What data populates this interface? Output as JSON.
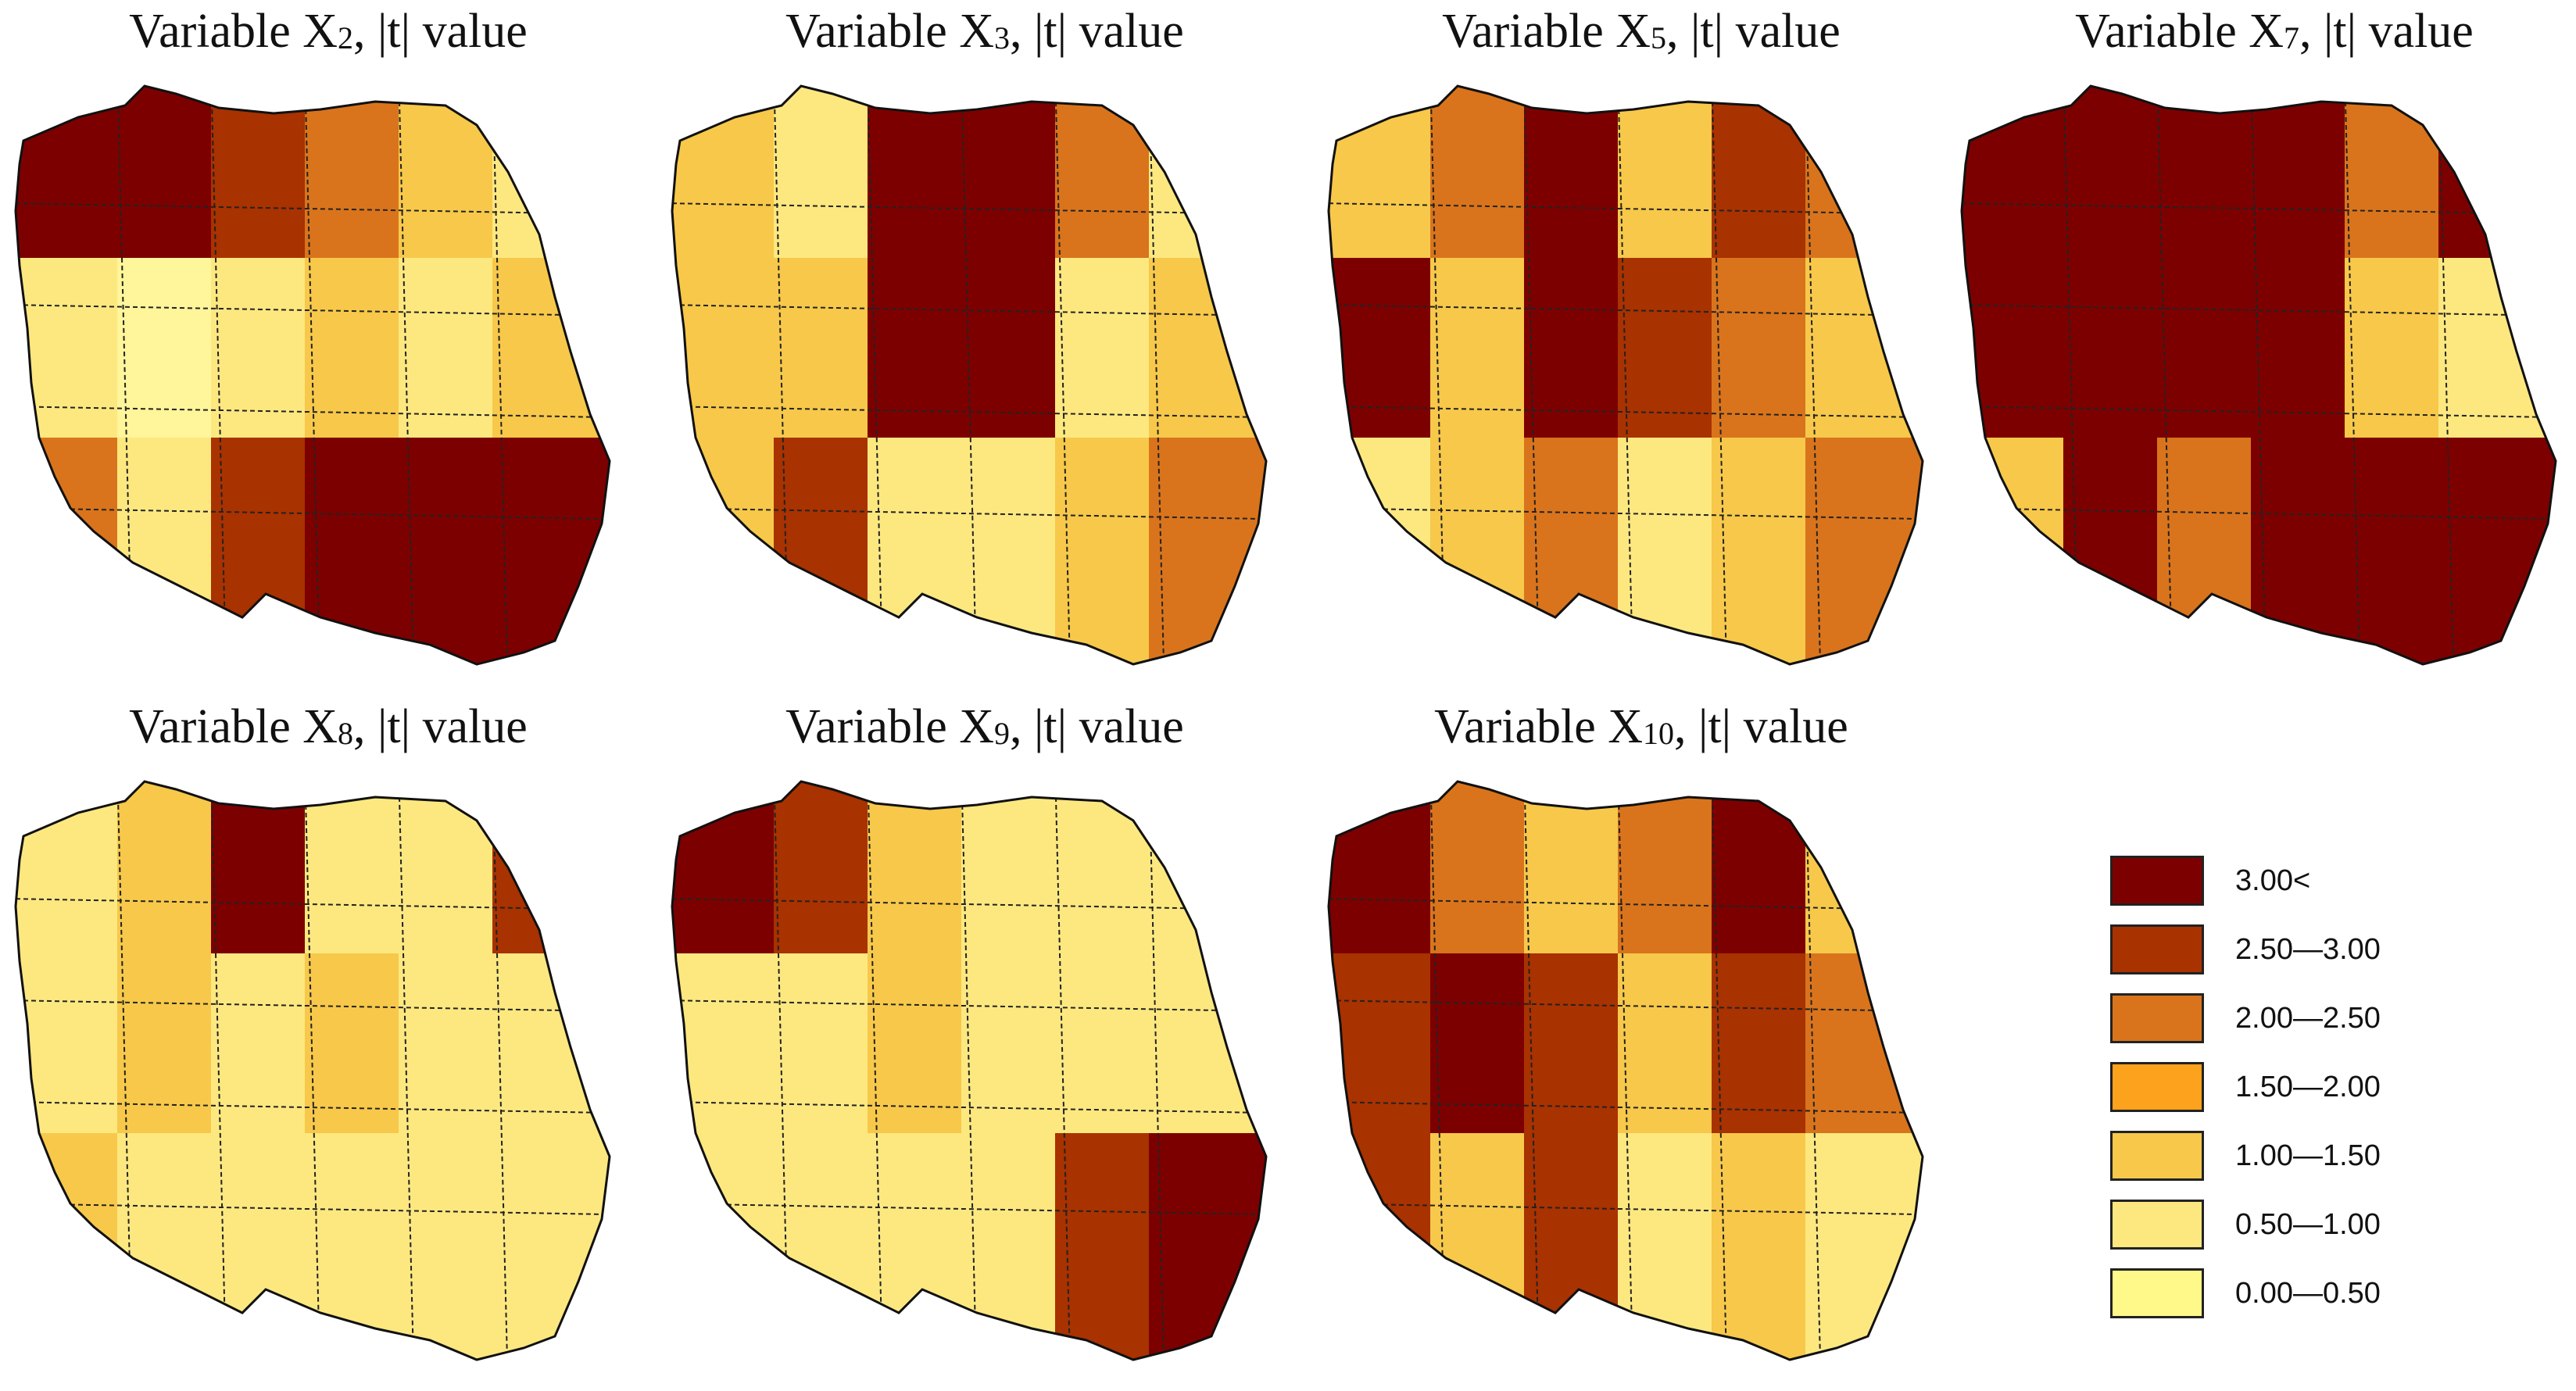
{
  "panels": [
    {
      "title_pre": "Variable X",
      "title_sub": "2",
      "title_post": ", |t| value",
      "fills": [
        "#7d0000",
        "#7d0000",
        "#a83200",
        "#d9741c",
        "#f7c84a",
        "#fde880",
        "#fde880",
        "#fff59a",
        "#fde880",
        "#f7c84a",
        "#fde880",
        "#f7c84a",
        "#d9741c",
        "#fde880",
        "#a83200",
        "#7d0000",
        "#7d0000",
        "#7d0000"
      ]
    },
    {
      "title_pre": "Variable X",
      "title_sub": "3",
      "title_post": ", |t| value",
      "fills": [
        "#f7c84a",
        "#fde880",
        "#7d0000",
        "#7d0000",
        "#d9741c",
        "#fde880",
        "#f7c84a",
        "#f7c84a",
        "#7d0000",
        "#7d0000",
        "#fde880",
        "#f7c84a",
        "#f7c84a",
        "#a83200",
        "#fde880",
        "#fde880",
        "#f7c84a",
        "#d9741c"
      ]
    },
    {
      "title_pre": "Variable X",
      "title_sub": "5",
      "title_post": ", |t| value",
      "fills": [
        "#f7c84a",
        "#d9741c",
        "#7d0000",
        "#f7c84a",
        "#a83200",
        "#d9741c",
        "#7d0000",
        "#f7c84a",
        "#7d0000",
        "#a83200",
        "#d9741c",
        "#f7c84a",
        "#fde880",
        "#f7c84a",
        "#d9741c",
        "#fde880",
        "#f7c84a",
        "#d9741c"
      ]
    },
    {
      "title_pre": "Variable X",
      "title_sub": "7",
      "title_post": ", |t| value",
      "fills": [
        "#7d0000",
        "#7d0000",
        "#7d0000",
        "#7d0000",
        "#d9741c",
        "#7d0000",
        "#7d0000",
        "#7d0000",
        "#7d0000",
        "#7d0000",
        "#f7c84a",
        "#fde880",
        "#f7c84a",
        "#7d0000",
        "#d9741c",
        "#7d0000",
        "#7d0000",
        "#7d0000"
      ]
    },
    {
      "title_pre": "Variable X",
      "title_sub": "8",
      "title_post": ", |t| value",
      "fills": [
        "#fde880",
        "#f7c84a",
        "#7d0000",
        "#fde880",
        "#fde880",
        "#a83200",
        "#fde880",
        "#f7c84a",
        "#fde880",
        "#f7c84a",
        "#fde880",
        "#fde880",
        "#f7c84a",
        "#fde880",
        "#fde880",
        "#fde880",
        "#fde880",
        "#fde880"
      ]
    },
    {
      "title_pre": "Variable X",
      "title_sub": "9",
      "title_post": ", |t| value",
      "fills": [
        "#7d0000",
        "#a83200",
        "#f7c84a",
        "#fde880",
        "#fde880",
        "#fde880",
        "#fde880",
        "#fde880",
        "#f7c84a",
        "#fde880",
        "#fde880",
        "#fde880",
        "#fde880",
        "#fde880",
        "#fde880",
        "#fde880",
        "#a83200",
        "#7d0000"
      ]
    },
    {
      "title_pre": "Variable X",
      "title_sub": "10",
      "title_post": ", |t| value",
      "fills": [
        "#7d0000",
        "#d9741c",
        "#f7c84a",
        "#d9741c",
        "#7d0000",
        "#f7c84a",
        "#a83200",
        "#7d0000",
        "#a83200",
        "#f7c84a",
        "#a83200",
        "#d9741c",
        "#a83200",
        "#f7c84a",
        "#a83200",
        "#fde880",
        "#f7c84a",
        "#fde880"
      ]
    }
  ],
  "legend": [
    {
      "label": "3.00<",
      "color": "#7d0000"
    },
    {
      "label": "2.50—3.00",
      "color": "#a83200"
    },
    {
      "label": "2.00—2.50",
      "color": "#d9741c"
    },
    {
      "label": "1.50—2.00",
      "color": "#fca21c"
    },
    {
      "label": "1.00—1.50",
      "color": "#f7c84a"
    },
    {
      "label": "0.50—1.00",
      "color": "#fde880"
    },
    {
      "label": "0.00—0.50",
      "color": "#fff98a"
    }
  ]
}
